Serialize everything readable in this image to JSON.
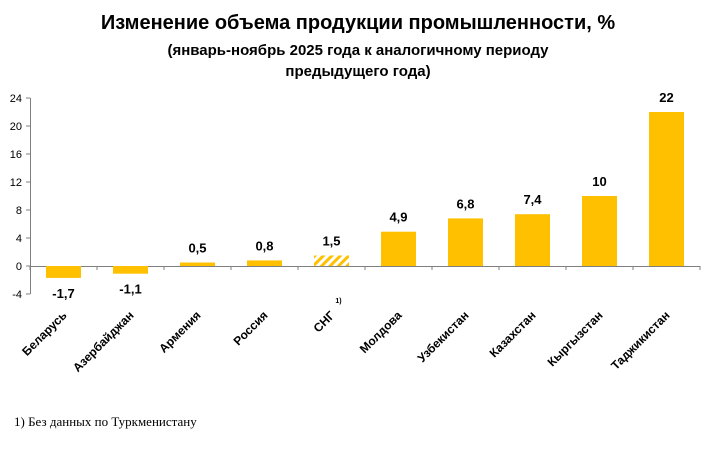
{
  "chart_data": {
    "type": "bar",
    "title": "Изменение объема продукции промышленности, %",
    "subtitle": "(январь-ноябрь 2025 года к аналогичному периоду предыдущего года)",
    "categories": [
      "Беларусь",
      "Азербайджан",
      "Армения",
      "Россия",
      "СНГ",
      "Молдова",
      "Узбекистан",
      "Казахстан",
      "Кыргызстан",
      "Таджикистан"
    ],
    "values": [
      -1.7,
      -1.1,
      0.5,
      0.8,
      1.5,
      4.9,
      6.8,
      7.4,
      10,
      22
    ],
    "value_labels": [
      "-1,7",
      "-1,1",
      "0,5",
      "0,8",
      "1,5",
      "4,9",
      "6,8",
      "7,4",
      "10",
      "22"
    ],
    "highlight_category": "СНГ",
    "highlight_note_marker": "1)",
    "ylim": [
      -4,
      24
    ],
    "yticks": [
      -4,
      0,
      4,
      8,
      12,
      16,
      20,
      24
    ],
    "xlabel": "",
    "ylabel": "",
    "grid": false,
    "bar_color": "#FFC000",
    "highlight_style": "hatched"
  },
  "footnote": "1) Без данных по Туркменистану"
}
